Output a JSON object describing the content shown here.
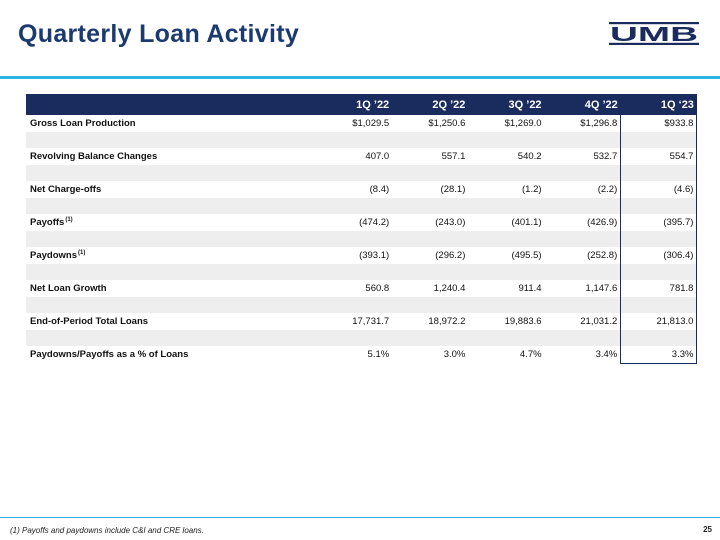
{
  "title": "Quarterly Loan Activity",
  "logo_text": "UMB",
  "colors": {
    "title": "#1a3a70",
    "accent": "#2bb3e5",
    "header_bg": "#1a2b5e",
    "stripe": "#eeeeee"
  },
  "table": {
    "columns": [
      "1Q ’22",
      "2Q ’22",
      "3Q ’22",
      "4Q ’22",
      "1Q ‘23"
    ],
    "rows": [
      {
        "label": "Gross Loan Production",
        "sup": "",
        "values": [
          "$1,029.5",
          "$1,250.6",
          "$1,269.0",
          "$1,296.8",
          "$933.8"
        ]
      },
      {
        "label": "Revolving Balance Changes",
        "sup": "",
        "values": [
          "407.0",
          "557.1",
          "540.2",
          "532.7",
          "554.7"
        ]
      },
      {
        "label": "Net Charge-offs",
        "sup": "",
        "values": [
          "(8.4)",
          "(28.1)",
          "(1.2)",
          "(2.2)",
          "(4.6)"
        ]
      },
      {
        "label": "Payoffs",
        "sup": "(1)",
        "values": [
          "(474.2)",
          "(243.0)",
          "(401.1)",
          "(426.9)",
          "(395.7)"
        ]
      },
      {
        "label": "Paydowns",
        "sup": "(1)",
        "values": [
          "(393.1)",
          "(296.2)",
          "(495.5)",
          "(252.8)",
          "(306.4)"
        ]
      },
      {
        "label": "Net Loan Growth",
        "sup": "",
        "values": [
          "560.8",
          "1,240.4",
          "911.4",
          "1,147.6",
          "781.8"
        ]
      },
      {
        "label": "End-of-Period Total Loans",
        "sup": "",
        "values": [
          "17,731.7",
          "18,972.2",
          "19,883.6",
          "21,031.2",
          "21,813.0"
        ]
      },
      {
        "label": "Paydowns/Payoffs as a % of Loans",
        "sup": "",
        "values": [
          "5.1%",
          "3.0%",
          "4.7%",
          "3.4%",
          "3.3%"
        ]
      }
    ]
  },
  "footnote": "(1) Payoffs and paydowns include C&I and CRE loans.",
  "page_number": "25"
}
